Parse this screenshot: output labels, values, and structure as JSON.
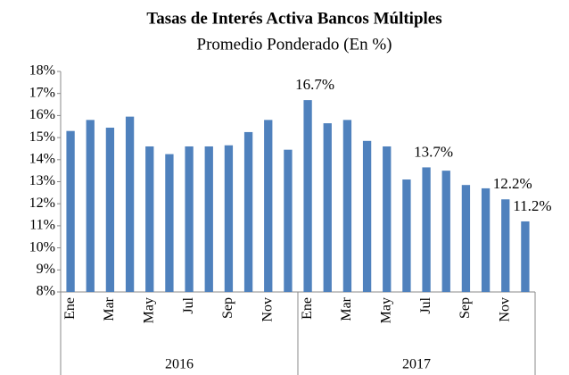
{
  "chart_data": {
    "type": "bar",
    "title": "Tasas de Interés Activa Bancos Múltiples",
    "subtitle": "Promedio Ponderado (En %)",
    "categories": [
      "Ene",
      null,
      "Mar",
      null,
      "May",
      null,
      "Jul",
      null,
      "Sep",
      null,
      "Nov",
      null,
      "Ene",
      null,
      "Mar",
      null,
      "May",
      null,
      "Jul",
      null,
      "Sep",
      null,
      "Nov",
      null
    ],
    "groups": [
      "2016",
      "2017"
    ],
    "values": [
      15.3,
      15.8,
      15.45,
      15.95,
      14.6,
      14.25,
      14.6,
      14.6,
      14.65,
      15.25,
      15.8,
      14.45,
      16.7,
      15.65,
      15.8,
      14.85,
      14.6,
      13.1,
      13.65,
      13.5,
      12.85,
      12.7,
      12.2,
      11.2
    ],
    "value_labels": [
      null,
      null,
      null,
      null,
      null,
      null,
      null,
      null,
      null,
      null,
      null,
      null,
      "16.7%",
      null,
      null,
      null,
      null,
      null,
      "13.7%",
      null,
      null,
      null,
      "12.2%",
      "11.2%"
    ],
    "color": "#4f81bd",
    "ylim": [
      8,
      18
    ],
    "yticks": [
      {
        "value": 8,
        "label": "8%"
      },
      {
        "value": 9,
        "label": "9%"
      },
      {
        "value": 10,
        "label": "10%"
      },
      {
        "value": 11,
        "label": "11%"
      },
      {
        "value": 12,
        "label": "12%"
      },
      {
        "value": 13,
        "label": "13%"
      },
      {
        "value": 14,
        "label": "14%"
      },
      {
        "value": 15,
        "label": "15%"
      },
      {
        "value": 16,
        "label": "16%"
      },
      {
        "value": 17,
        "label": "17%"
      },
      {
        "value": 18,
        "label": "18%"
      }
    ],
    "grid": false
  }
}
